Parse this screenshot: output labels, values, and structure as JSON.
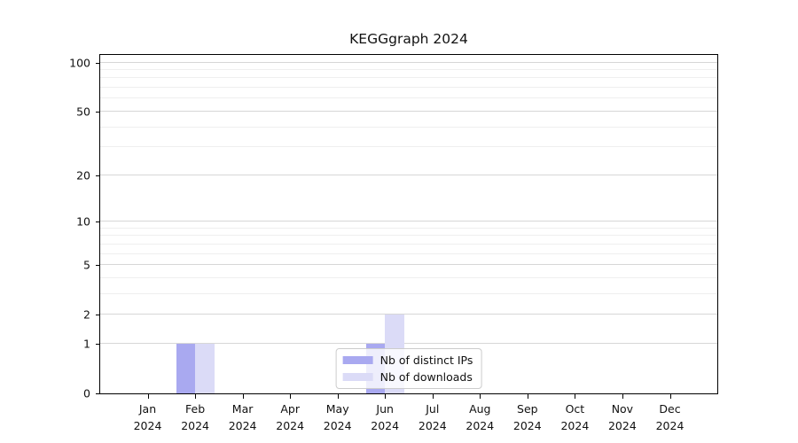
{
  "chart_data": {
    "type": "bar",
    "title": "KEGGgraph 2024",
    "categories": [
      "Jan",
      "Feb",
      "Mar",
      "Apr",
      "May",
      "Jun",
      "Jul",
      "Aug",
      "Sep",
      "Oct",
      "Nov",
      "Dec"
    ],
    "category_year": "2024",
    "series": [
      {
        "name": "Nb of distinct IPs",
        "color": "#a9a9f0",
        "values": [
          0,
          1,
          0,
          0,
          0,
          1,
          0,
          0,
          0,
          0,
          0,
          0
        ]
      },
      {
        "name": "Nb of downloads",
        "color": "#dbdbf7",
        "values": [
          0,
          1,
          0,
          0,
          0,
          2,
          0,
          0,
          0,
          0,
          0,
          0
        ]
      }
    ],
    "yscale": "log10(1+x)",
    "ylim": [
      0,
      113
    ],
    "y_major_ticks": [
      0,
      1,
      2,
      5,
      10,
      20,
      50,
      100
    ],
    "y_minor_gridlines": [
      3,
      4,
      6,
      7,
      8,
      9,
      30,
      40,
      60,
      70,
      80,
      90
    ],
    "grid": "horizontal",
    "legend_position": "lower center",
    "colors": {
      "major_gridline": "#d7d7d7",
      "minor_gridline": "#efefef",
      "axis": "#000000",
      "legend_border": "#cccccc"
    }
  }
}
